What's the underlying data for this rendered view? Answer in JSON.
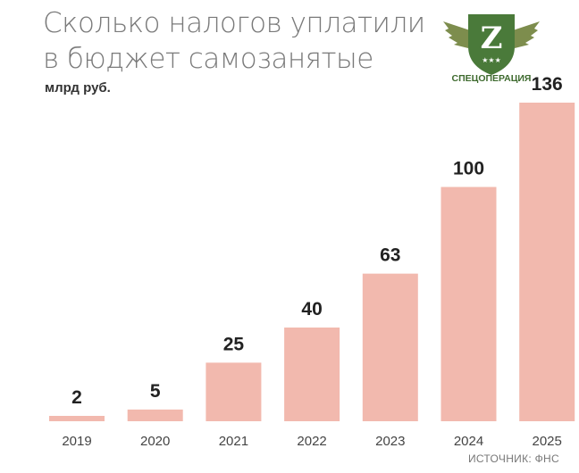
{
  "header": {
    "title_line1": "Сколько налогов уплатили",
    "title_line2": "в бюджет самозанятые",
    "unit": "млрд руб."
  },
  "logo": {
    "letter": "Z",
    "caption": "СПЕЦОПЕРАЦИЯ",
    "stars": "★★★",
    "colors": {
      "badge": "#4a7a3a",
      "wings": "#7d8d4d",
      "text": "#3e6a2e"
    }
  },
  "footer": {
    "source": "ИСТОЧНИК: ФНС"
  },
  "chart_data": {
    "type": "bar",
    "categories": [
      "2019",
      "2020",
      "2021",
      "2022",
      "2023",
      "2024",
      "2025"
    ],
    "values": [
      2,
      5,
      25,
      40,
      63,
      100,
      136
    ],
    "data_labels": [
      "2",
      "5",
      "25",
      "40",
      "63",
      "100",
      "136"
    ],
    "title": "Сколько налогов уплатили в бюджет самозанятые",
    "ylabel": "млрд руб.",
    "xlabel": "",
    "ylim": [
      0,
      136
    ],
    "grid": false,
    "legend": "none",
    "bar_color": "#f2b9ae"
  }
}
